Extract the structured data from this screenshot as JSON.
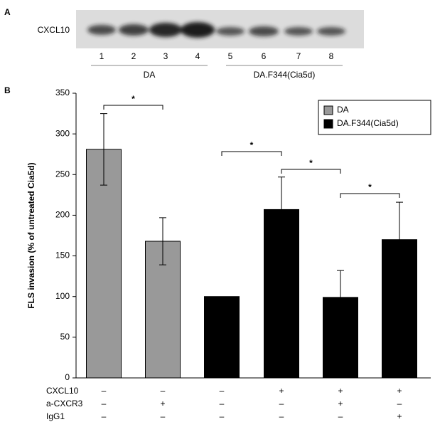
{
  "panels": [
    "A",
    "B"
  ],
  "blot": {
    "label": "CXCL10",
    "lanes": [
      "1",
      "2",
      "3",
      "4",
      "5",
      "6",
      "7",
      "8"
    ],
    "groups": [
      "DA",
      "DA.F344(Cia5d)"
    ]
  },
  "chart_data": {
    "type": "bar",
    "ylabel": "FLS invasion (% of untreated Cia5d)",
    "ylim": [
      0,
      350
    ],
    "yticks": [
      0,
      50,
      100,
      150,
      200,
      250,
      300,
      350
    ],
    "series": [
      {
        "name": "DA",
        "color": "#999999",
        "values": [
          281,
          168,
          null,
          null,
          null,
          null
        ],
        "errors": [
          44,
          29,
          null,
          null,
          null,
          null
        ]
      },
      {
        "name": "DA.F344(Cia5d)",
        "color": "#000000",
        "values": [
          null,
          null,
          100,
          207,
          99,
          170
        ],
        "errors": [
          null,
          null,
          null,
          40,
          33,
          46
        ]
      }
    ],
    "legend": "upper right",
    "annotations": [
      {
        "from": 0,
        "to": 1,
        "label": "*"
      },
      {
        "from": 2,
        "to": 3,
        "label": "*"
      },
      {
        "from": 3,
        "to": 4,
        "label": "*"
      },
      {
        "from": 4,
        "to": 5,
        "label": "*"
      }
    ],
    "treatments": [
      {
        "name": "CXCL10",
        "signs": [
          "–",
          "–",
          "–",
          "+",
          "+",
          "+"
        ]
      },
      {
        "name": "a-CXCR3",
        "signs": [
          "–",
          "+",
          "–",
          "–",
          "+",
          "–"
        ]
      },
      {
        "name": "IgG1",
        "signs": [
          "–",
          "–",
          "–",
          "–",
          "–",
          "+"
        ]
      }
    ]
  }
}
